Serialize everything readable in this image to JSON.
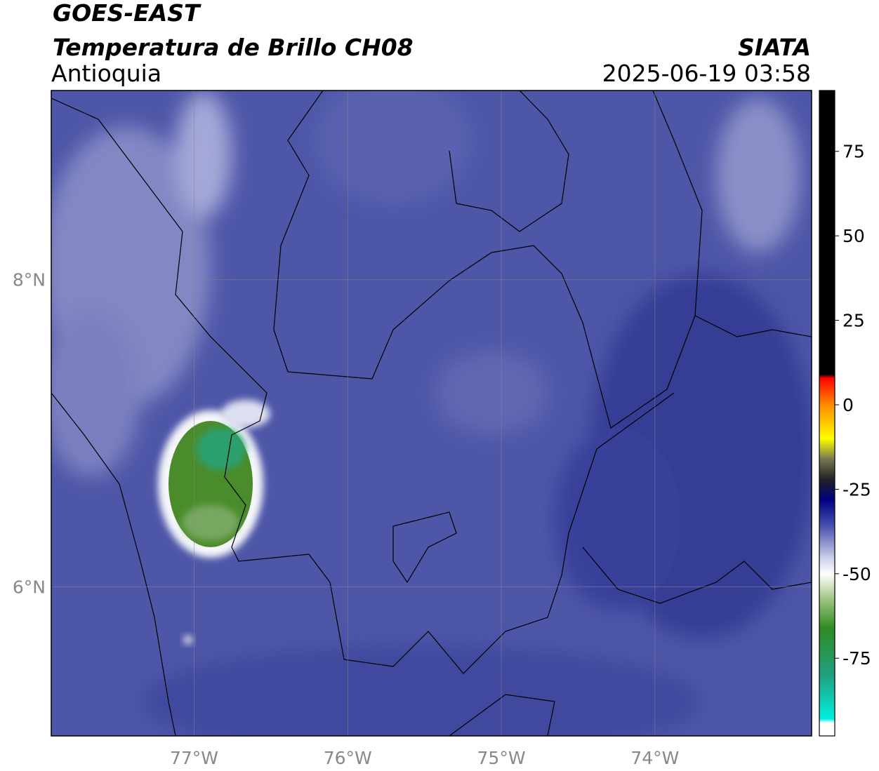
{
  "map": {
    "title": "GOES-EAST",
    "subtitle": "Temperatura de Brillo CH08",
    "region": "Antioquia",
    "source": "SIATA",
    "timestamp": "2025-06-19 03:58",
    "xlim": [
      -77.93,
      -72.98
    ],
    "ylim": [
      5.03,
      9.23
    ],
    "xticks": [
      {
        "value": -77,
        "label": "77°W"
      },
      {
        "value": -76,
        "label": "76°W"
      },
      {
        "value": -75,
        "label": "75°W"
      },
      {
        "value": -74,
        "label": "74°W"
      }
    ],
    "yticks": [
      {
        "value": 6,
        "label": "6°N"
      },
      {
        "value": 8,
        "label": "8°N"
      }
    ],
    "grid": true,
    "colorbar": {
      "clim": [
        -98,
        93
      ],
      "ticks": [
        -75,
        -50,
        -25,
        0,
        25,
        50,
        75
      ],
      "colormap": [
        {
          "value": 93,
          "color": "#000000"
        },
        {
          "value": 9,
          "color": "#000000"
        },
        {
          "value": 8,
          "color": "#ff0000"
        },
        {
          "value": 0,
          "color": "#ff8c00"
        },
        {
          "value": -10,
          "color": "#ffff00"
        },
        {
          "value": -16,
          "color": "#777755"
        },
        {
          "value": -22,
          "color": "#222222"
        },
        {
          "value": -28,
          "color": "#000080"
        },
        {
          "value": -36,
          "color": "#4a52b0"
        },
        {
          "value": -45,
          "color": "#c8cce8"
        },
        {
          "value": -50,
          "color": "#ffffff"
        },
        {
          "value": -57,
          "color": "#a8c888"
        },
        {
          "value": -66,
          "color": "#2e8b22"
        },
        {
          "value": -80,
          "color": "#20a080"
        },
        {
          "value": -93,
          "color": "#00f0e0"
        },
        {
          "value": -94,
          "color": "#ffffff"
        },
        {
          "value": -98,
          "color": "#ffffff"
        }
      ]
    }
  }
}
